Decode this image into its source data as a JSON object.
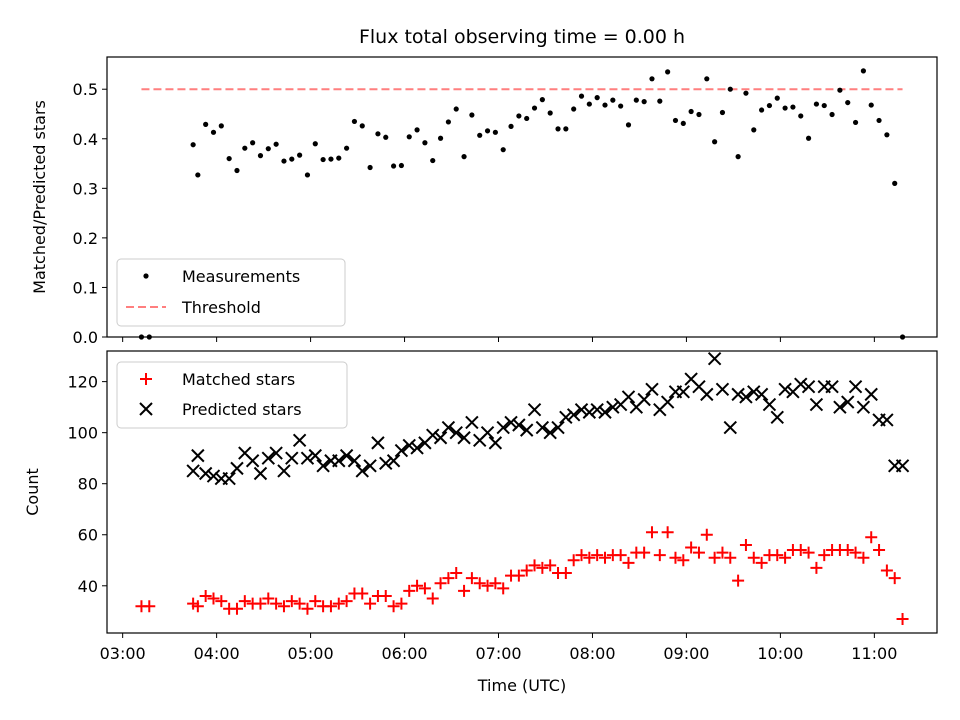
{
  "chart_data": [
    {
      "type": "scatter",
      "title": "Flux total observing time = 0.00 h",
      "ylabel": "Matched/Predicted stars",
      "xlabel": "",
      "ylim": [
        0,
        0.565
      ],
      "yticks": [
        "0.0",
        "0.1",
        "0.2",
        "0.3",
        "0.4",
        "0.5"
      ],
      "legend": "lower-left",
      "series": [
        {
          "name": "Measurements",
          "marker": "dot",
          "color": "#000000",
          "x": [
            "03:12",
            "03:17",
            "03:45",
            "03:48",
            "03:53",
            "03:58",
            "04:03",
            "04:08",
            "04:13",
            "04:18",
            "04:23",
            "04:28",
            "04:33",
            "04:38",
            "04:43",
            "04:48",
            "04:53",
            "04:58",
            "05:03",
            "05:08",
            "05:13",
            "05:18",
            "05:23",
            "05:28",
            "05:33",
            "05:38",
            "05:43",
            "05:48",
            "05:53",
            "05:58",
            "06:03",
            "06:08",
            "06:13",
            "06:18",
            "06:23",
            "06:28",
            "06:33",
            "06:38",
            "06:43",
            "06:48",
            "06:53",
            "06:58",
            "07:03",
            "07:08",
            "07:13",
            "07:18",
            "07:23",
            "07:28",
            "07:33",
            "07:38",
            "07:43",
            "07:48",
            "07:53",
            "07:58",
            "08:03",
            "08:08",
            "08:13",
            "08:18",
            "08:23",
            "08:28",
            "08:33",
            "08:38",
            "08:43",
            "08:48",
            "08:53",
            "08:58",
            "09:03",
            "09:08",
            "09:13",
            "09:18",
            "09:23",
            "09:28",
            "09:33",
            "09:38",
            "09:43",
            "09:48",
            "09:53",
            "09:58",
            "10:03",
            "10:08",
            "10:13",
            "10:18",
            "10:23",
            "10:28",
            "10:33",
            "10:38",
            "10:43",
            "10:48",
            "10:53",
            "10:58",
            "11:03",
            "11:08",
            "11:13",
            "11:18"
          ],
          "y": [
            0.0,
            0.0,
            0.388,
            0.327,
            0.429,
            0.413,
            0.426,
            0.36,
            0.336,
            0.381,
            0.392,
            0.366,
            0.38,
            0.389,
            0.355,
            0.359,
            0.367,
            0.327,
            0.39,
            0.358,
            0.359,
            0.361,
            0.381,
            0.435,
            0.426,
            0.342,
            0.41,
            0.403,
            0.345,
            0.346,
            0.404,
            0.418,
            0.392,
            0.356,
            0.401,
            0.434,
            0.46,
            0.364,
            0.448,
            0.407,
            0.416,
            0.413,
            0.378,
            0.425,
            0.446,
            0.441,
            0.462,
            0.479,
            0.452,
            0.42,
            0.42,
            0.46,
            0.486,
            0.47,
            0.483,
            0.468,
            0.478,
            0.466,
            0.428,
            0.478,
            0.475,
            0.521,
            0.476,
            0.535,
            0.437,
            0.431,
            0.455,
            0.449,
            0.521,
            0.394,
            0.453,
            0.5,
            0.364,
            0.492,
            0.418,
            0.458,
            0.467,
            0.482,
            0.462,
            0.464,
            0.446,
            0.401,
            0.47,
            0.467,
            0.449,
            0.498,
            0.473,
            0.433,
            0.537,
            0.468,
            0.437,
            0.408,
            0.31,
            0.0
          ]
        },
        {
          "name": "Threshold",
          "style": "dashed",
          "color": "#ff7f7f",
          "x": [
            "03:12",
            "11:18"
          ],
          "y": [
            0.5,
            0.5
          ]
        }
      ]
    },
    {
      "type": "scatter",
      "title": "",
      "ylabel": "Count",
      "xlabel": "Time (UTC)",
      "xlim": [
        "02:50",
        "11:40"
      ],
      "xticks": [
        "03:00",
        "04:00",
        "05:00",
        "06:00",
        "07:00",
        "08:00",
        "09:00",
        "10:00",
        "11:00"
      ],
      "ylim": [
        21.5,
        132
      ],
      "yticks": [
        "40",
        "60",
        "80",
        "100",
        "120"
      ],
      "legend": "upper-left",
      "series": [
        {
          "name": "Matched stars",
          "marker": "plus",
          "color": "#ff0000",
          "x": [
            "03:12",
            "03:17",
            "03:45",
            "03:48",
            "03:53",
            "03:58",
            "04:03",
            "04:08",
            "04:13",
            "04:18",
            "04:23",
            "04:28",
            "04:33",
            "04:38",
            "04:43",
            "04:48",
            "04:53",
            "04:58",
            "05:03",
            "05:08",
            "05:13",
            "05:18",
            "05:23",
            "05:28",
            "05:33",
            "05:38",
            "05:43",
            "05:48",
            "05:53",
            "05:58",
            "06:03",
            "06:08",
            "06:13",
            "06:18",
            "06:23",
            "06:28",
            "06:33",
            "06:38",
            "06:43",
            "06:48",
            "06:53",
            "06:58",
            "07:03",
            "07:08",
            "07:13",
            "07:18",
            "07:23",
            "07:28",
            "07:33",
            "07:38",
            "07:43",
            "07:48",
            "07:53",
            "07:58",
            "08:03",
            "08:08",
            "08:13",
            "08:18",
            "08:23",
            "08:28",
            "08:33",
            "08:38",
            "08:43",
            "08:48",
            "08:53",
            "08:58",
            "09:03",
            "09:08",
            "09:13",
            "09:18",
            "09:23",
            "09:28",
            "09:33",
            "09:38",
            "09:43",
            "09:48",
            "09:53",
            "09:58",
            "10:03",
            "10:08",
            "10:13",
            "10:18",
            "10:23",
            "10:28",
            "10:33",
            "10:38",
            "10:43",
            "10:48",
            "10:53",
            "10:58",
            "11:03",
            "11:08",
            "11:13",
            "11:18"
          ],
          "y": [
            32,
            32,
            33,
            32,
            36,
            35,
            34,
            31,
            31,
            34,
            33,
            33,
            35,
            33,
            32,
            34,
            33,
            31,
            34,
            32,
            32,
            33,
            34,
            37,
            37,
            33,
            36,
            36,
            32,
            33,
            38,
            40,
            39,
            35,
            41,
            43,
            45,
            38,
            43,
            41,
            40,
            41,
            39,
            44,
            44,
            46,
            48,
            47,
            48,
            45,
            45,
            50,
            52,
            51,
            52,
            51,
            52,
            52,
            49,
            53,
            53,
            61,
            52,
            61,
            51,
            50,
            55,
            53,
            60,
            51,
            53,
            51,
            42,
            56,
            51,
            49,
            52,
            52,
            51,
            54,
            54,
            53,
            47,
            52,
            54,
            54,
            54,
            53,
            51,
            59,
            54,
            46,
            43,
            27
          ]
        },
        {
          "name": "Predicted stars",
          "marker": "x",
          "color": "#000000",
          "x": [
            "03:45",
            "03:48",
            "03:53",
            "03:58",
            "04:03",
            "04:08",
            "04:13",
            "04:18",
            "04:23",
            "04:28",
            "04:33",
            "04:38",
            "04:43",
            "04:48",
            "04:53",
            "04:58",
            "05:03",
            "05:08",
            "05:13",
            "05:18",
            "05:23",
            "05:28",
            "05:33",
            "05:38",
            "05:43",
            "05:48",
            "05:53",
            "05:58",
            "06:03",
            "06:08",
            "06:13",
            "06:18",
            "06:23",
            "06:28",
            "06:33",
            "06:38",
            "06:43",
            "06:48",
            "06:53",
            "06:58",
            "07:03",
            "07:08",
            "07:13",
            "07:18",
            "07:23",
            "07:28",
            "07:33",
            "07:38",
            "07:43",
            "07:48",
            "07:53",
            "07:58",
            "08:03",
            "08:08",
            "08:13",
            "08:18",
            "08:23",
            "08:28",
            "08:33",
            "08:38",
            "08:43",
            "08:48",
            "08:53",
            "08:58",
            "09:03",
            "09:08",
            "09:13",
            "09:18",
            "09:23",
            "09:28",
            "09:33",
            "09:38",
            "09:43",
            "09:48",
            "09:53",
            "09:58",
            "10:03",
            "10:08",
            "10:13",
            "10:18",
            "10:23",
            "10:28",
            "10:33",
            "10:38",
            "10:43",
            "10:48",
            "10:53",
            "10:58",
            "11:03",
            "11:08",
            "11:13",
            "11:18"
          ],
          "y": [
            85,
            91,
            84,
            83,
            82,
            82,
            86,
            92,
            89,
            84,
            90,
            92,
            85,
            90,
            97,
            90,
            91,
            87,
            89,
            89,
            91,
            89,
            85,
            87,
            96,
            88,
            89,
            93,
            95,
            94,
            96,
            99,
            98,
            102,
            100,
            98,
            104,
            97,
            100,
            96,
            102,
            104,
            103,
            101,
            109,
            102,
            100,
            102,
            106,
            107,
            109,
            108,
            109,
            108,
            110,
            111,
            114,
            110,
            113,
            117,
            109,
            112,
            116,
            116,
            121,
            118,
            115,
            129,
            117,
            102,
            115,
            114,
            116,
            115,
            111,
            106,
            117,
            116,
            119,
            118,
            111,
            118,
            118,
            110,
            112,
            118,
            110,
            115,
            105,
            105,
            87,
            87
          ]
        }
      ]
    }
  ]
}
